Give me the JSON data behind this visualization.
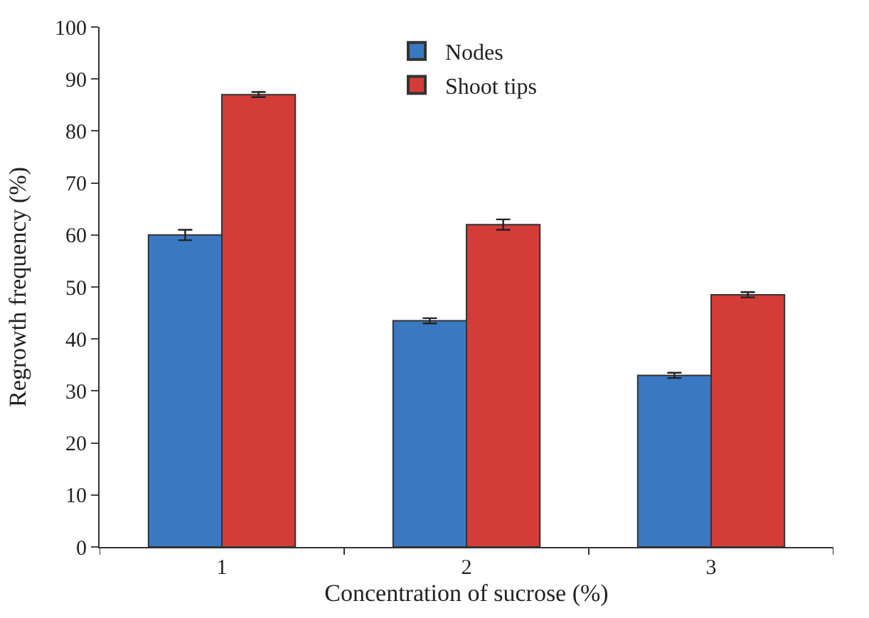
{
  "chart_data": {
    "type": "bar",
    "xlabel": "Concentration of sucrose (%)",
    "ylabel": "Regrowth frequency (%)",
    "categories": [
      "1",
      "2",
      "3"
    ],
    "series": [
      {
        "name": "Nodes",
        "color": "#3a78c2",
        "values": [
          60,
          43.5,
          33
        ],
        "errors": [
          1,
          0.5,
          0.5
        ]
      },
      {
        "name": "Shoot tips",
        "color": "#d43c38",
        "values": [
          87,
          62,
          48.5
        ],
        "errors": [
          0.5,
          1,
          0.5
        ]
      }
    ],
    "ylim": [
      0,
      100
    ],
    "yticks": [
      0,
      10,
      20,
      30,
      40,
      50,
      60,
      70,
      80,
      90,
      100
    ],
    "legend": "top"
  }
}
